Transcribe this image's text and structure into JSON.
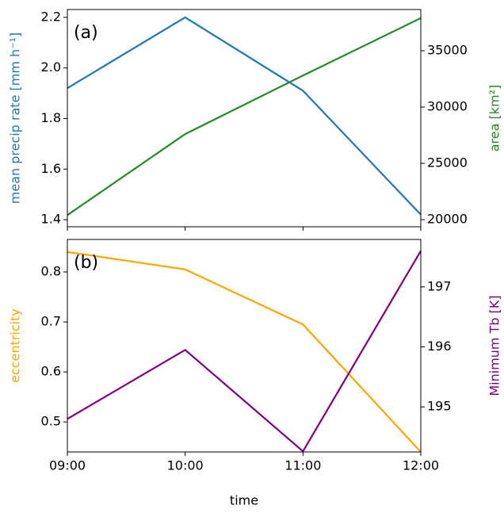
{
  "chart_data": [
    {
      "type": "line",
      "annotation": "(a)",
      "ylabel": "mean precip rate [mm h⁻¹]",
      "y2label": "area [km²]",
      "ylim": [
        1.372,
        2.231
      ],
      "yticks": [
        1.4,
        1.6,
        1.8,
        {
          "value": 2,
          "label": "2.0"
        },
        2.2
      ],
      "y2lim": [
        19366,
        38662
      ],
      "y2ticks": [
        20000,
        25000,
        30000,
        35000
      ],
      "series": [
        {
          "color": "#1f77b4",
          "values": [
            1.92,
            2.2,
            1.91,
            1.42
          ]
        },
        {
          "color": "#228b22",
          "axis": "y2",
          "values": [
            20400,
            27600,
            32800,
            37900
          ]
        }
      ]
    },
    {
      "type": "line",
      "annotation": "(b)",
      "xlabel": "time",
      "categories": [
        "09:00",
        "10:00",
        "11:00",
        "12:00"
      ],
      "ylabel": "eccentricity",
      "y2label": "Minimum Tb [K]",
      "ylim": [
        0.44,
        0.865
      ],
      "yticks": [
        0.5,
        0.6,
        0.7,
        0.8
      ],
      "y2lim": [
        194.25,
        197.79
      ],
      "y2ticks": [
        195,
        196,
        197
      ],
      "series": [
        {
          "color": "#ffa500",
          "values": [
            0.84,
            0.805,
            0.695,
            0.44
          ]
        },
        {
          "color": "#800080",
          "axis": "y2",
          "values": [
            194.8,
            195.95,
            194.26,
            197.6
          ]
        }
      ]
    }
  ]
}
